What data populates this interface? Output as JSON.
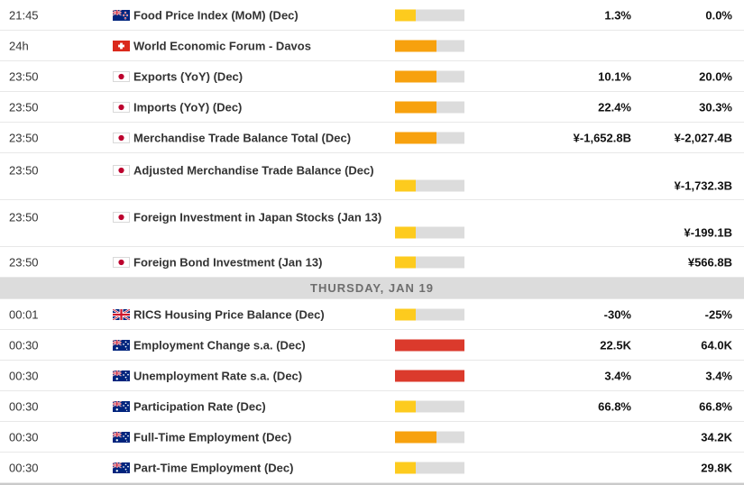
{
  "table": {
    "name": "economic-calendar",
    "value_columns": [
      "forecast",
      "previous"
    ],
    "importance_scale_max": 3,
    "importance_colors": {
      "1": "#FDCB1E",
      "2": "#F7A10E",
      "3": "#DB3A2C",
      "track": "#DCDCDC"
    }
  },
  "rows": [
    {
      "type": "event",
      "time": "21:45",
      "country": "New Zealand",
      "flag": "nz",
      "title": "Food Price Index (MoM) (Dec)",
      "importance": 1,
      "forecast": "1.3%",
      "previous": "0.0%",
      "layout": "one-line"
    },
    {
      "type": "event",
      "time": "24h",
      "country": "Switzerland",
      "flag": "ch",
      "title": "World Economic Forum - Davos",
      "importance": 2,
      "forecast": "",
      "previous": "",
      "layout": "one-line"
    },
    {
      "type": "event",
      "time": "23:50",
      "country": "Japan",
      "flag": "jp",
      "title": "Exports (YoY) (Dec)",
      "importance": 2,
      "forecast": "10.1%",
      "previous": "20.0%",
      "layout": "one-line"
    },
    {
      "type": "event",
      "time": "23:50",
      "country": "Japan",
      "flag": "jp",
      "title": "Imports (YoY) (Dec)",
      "importance": 2,
      "forecast": "22.4%",
      "previous": "30.3%",
      "layout": "one-line"
    },
    {
      "type": "event",
      "time": "23:50",
      "country": "Japan",
      "flag": "jp",
      "title": "Merchandise Trade Balance Total (Dec)",
      "importance": 2,
      "forecast": "¥-1,652.8B",
      "previous": "¥-2,027.4B",
      "layout": "one-line"
    },
    {
      "type": "event",
      "time": "23:50",
      "country": "Japan",
      "flag": "jp",
      "title": "Adjusted Merchandise Trade Balance (Dec)",
      "importance": 1,
      "forecast": "",
      "previous": "¥-1,732.3B",
      "layout": "two-line"
    },
    {
      "type": "event",
      "time": "23:50",
      "country": "Japan",
      "flag": "jp",
      "title": "Foreign Investment in Japan Stocks (Jan 13)",
      "importance": 1,
      "forecast": "",
      "previous": "¥-199.1B",
      "layout": "two-line"
    },
    {
      "type": "event",
      "time": "23:50",
      "country": "Japan",
      "flag": "jp",
      "title": "Foreign Bond Investment (Jan 13)",
      "importance": 1,
      "forecast": "",
      "previous": "¥566.8B",
      "layout": "one-line"
    },
    {
      "type": "day-separator",
      "label": "THURSDAY, JAN 19"
    },
    {
      "type": "event",
      "time": "00:01",
      "country": "United Kingdom",
      "flag": "gb",
      "title": "RICS Housing Price Balance (Dec)",
      "importance": 1,
      "forecast": "-30%",
      "previous": "-25%",
      "layout": "one-line"
    },
    {
      "type": "event",
      "time": "00:30",
      "country": "Australia",
      "flag": "au",
      "title": "Employment Change s.a. (Dec)",
      "importance": 3,
      "forecast": "22.5K",
      "previous": "64.0K",
      "layout": "one-line"
    },
    {
      "type": "event",
      "time": "00:30",
      "country": "Australia",
      "flag": "au",
      "title": "Unemployment Rate s.a. (Dec)",
      "importance": 3,
      "forecast": "3.4%",
      "previous": "3.4%",
      "layout": "one-line"
    },
    {
      "type": "event",
      "time": "00:30",
      "country": "Australia",
      "flag": "au",
      "title": "Participation Rate (Dec)",
      "importance": 1,
      "forecast": "66.8%",
      "previous": "66.8%",
      "layout": "one-line"
    },
    {
      "type": "event",
      "time": "00:30",
      "country": "Australia",
      "flag": "au",
      "title": "Full-Time Employment (Dec)",
      "importance": 2,
      "forecast": "",
      "previous": "34.2K",
      "layout": "one-line"
    },
    {
      "type": "event",
      "time": "00:30",
      "country": "Australia",
      "flag": "au",
      "title": "Part-Time Employment (Dec)",
      "importance": 1,
      "forecast": "",
      "previous": "29.8K",
      "layout": "one-line"
    }
  ]
}
